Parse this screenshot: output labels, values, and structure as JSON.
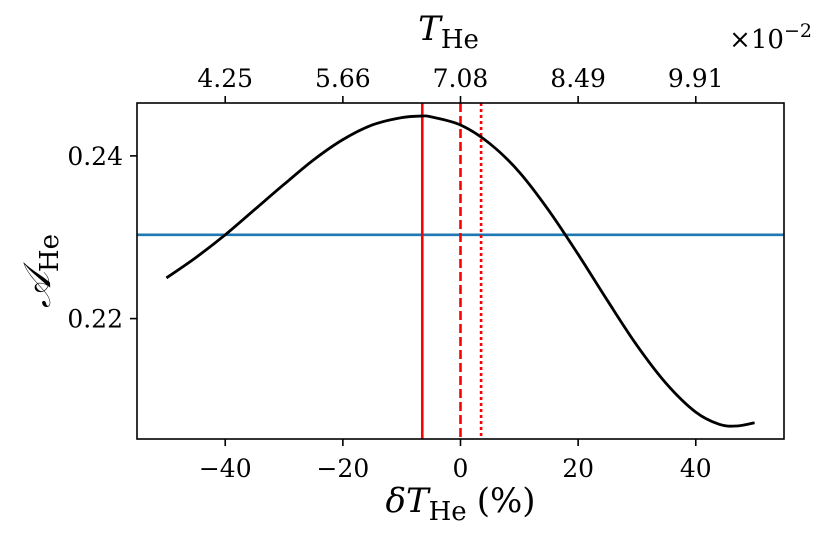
{
  "chart_data": {
    "type": "line",
    "xlabel": {
      "prefix": "δ",
      "var": "T",
      "sub": "He",
      "unit": "(%)"
    },
    "ylabel": {
      "var": "𝒜",
      "sub": "He"
    },
    "top_axis_label": {
      "var": "T",
      "sub": "He"
    },
    "top_axis_offset": {
      "prefix": "×10",
      "exp": "−2"
    },
    "xlim": [
      -55,
      55
    ],
    "ylim": [
      0.2052,
      0.2465
    ],
    "xticks": [
      -40,
      -20,
      0,
      20,
      40
    ],
    "xtick_labels": [
      "−40",
      "−20",
      "0",
      "20",
      "40"
    ],
    "yticks": [
      0.22,
      0.24
    ],
    "ytick_labels": [
      "0.22",
      "0.24"
    ],
    "top_xticks": [
      -40,
      -20,
      0,
      20,
      40
    ],
    "top_xtick_labels": [
      "4.25",
      "5.66",
      "7.08",
      "8.49",
      "9.91"
    ],
    "grid": false,
    "series": [
      {
        "color": "#000000",
        "x": [
          -50,
          -45,
          -40,
          -35,
          -30,
          -25,
          -20,
          -15,
          -10,
          -6.5,
          -5,
          0,
          5,
          10,
          15,
          20,
          25,
          30,
          35,
          40,
          44,
          47,
          50
        ],
        "y": [
          0.225,
          0.2275,
          0.2303,
          0.2334,
          0.2365,
          0.2395,
          0.242,
          0.2438,
          0.2447,
          0.2449,
          0.2448,
          0.2438,
          0.2415,
          0.238,
          0.2333,
          0.2279,
          0.2222,
          0.2167,
          0.212,
          0.2085,
          0.207,
          0.2068,
          0.2072
        ]
      }
    ],
    "hlines": [
      {
        "y": 0.2303,
        "color": "#1f77b4"
      }
    ],
    "vlines": [
      {
        "x": -6.5,
        "color": "#ff0000",
        "style": "solid"
      },
      {
        "x": 0,
        "color": "#ff0000",
        "style": "dashed"
      },
      {
        "x": 3.5,
        "color": "#ff0000",
        "style": "dotted"
      }
    ]
  }
}
